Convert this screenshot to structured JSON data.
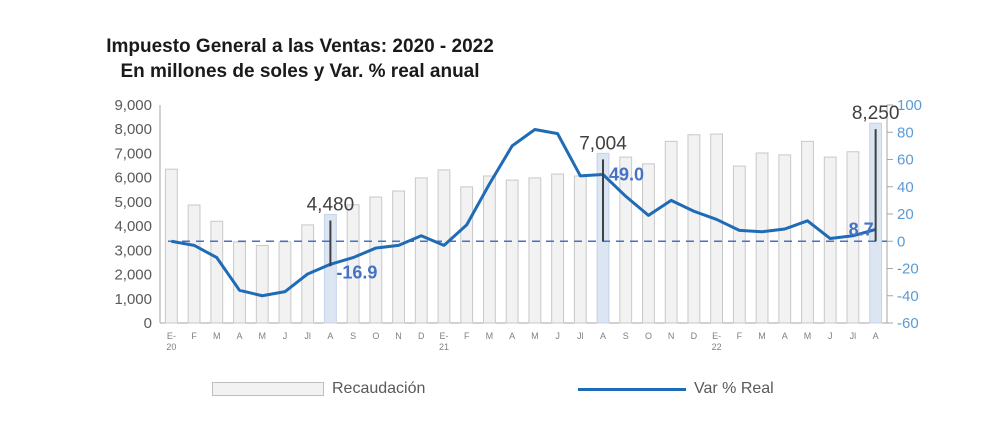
{
  "title": {
    "line1": "Impuesto General a las Ventas: 2020 - 2022",
    "line2": "En millones de soles y Var. % real anual"
  },
  "legend": {
    "bar_label": "Recaudación",
    "line_label": "Var % Real"
  },
  "colors": {
    "bar_fill": "#f2f2f2",
    "bar_stroke": "#c8c8c8",
    "bar_highlight": "#dce6f2",
    "line": "#1f6bb5",
    "zero_dash": "#4472c4",
    "left_axis_text": "#595959",
    "right_axis_text": "#5b9bd5",
    "annotation_value": "#404040",
    "annotation_pct": "#4472c4"
  },
  "chart_data": {
    "type": "bar",
    "title": "Impuesto General a las Ventas: 2020 - 2022 — En millones de soles y Var. % real anual",
    "categories": [
      "E-20",
      "F",
      "M",
      "A",
      "M",
      "J",
      "Jl",
      "A",
      "S",
      "O",
      "N",
      "D",
      "E-21",
      "F",
      "M",
      "A",
      "M",
      "J",
      "Jl",
      "A",
      "S",
      "O",
      "N",
      "D",
      "E-22",
      "F",
      "M",
      "A",
      "M",
      "J",
      "Jl",
      "A"
    ],
    "series": [
      {
        "name": "Recaudación",
        "type": "bar",
        "axis": "left",
        "values": [
          6350,
          4870,
          4200,
          3350,
          3200,
          3350,
          4050,
          4480,
          4880,
          5200,
          5450,
          5990,
          6320,
          5620,
          6070,
          5900,
          5990,
          6150,
          6070,
          7004,
          6850,
          6570,
          7500,
          7770,
          7800,
          6480,
          7020,
          6940,
          7500,
          6850,
          7070,
          8250
        ]
      },
      {
        "name": "Var % Real",
        "type": "line",
        "axis": "right",
        "values": [
          0,
          -3,
          -12,
          -36,
          -40,
          -37,
          -24,
          -16.9,
          -12,
          -5,
          -3,
          4,
          -3,
          12,
          42,
          70,
          82,
          79,
          48,
          49.0,
          33,
          19,
          30,
          22,
          16,
          8,
          7,
          9,
          15,
          2,
          4,
          8.7
        ]
      }
    ],
    "highlighted": [
      {
        "index": 7,
        "bar_label": "4,480",
        "line_label": "-16.9"
      },
      {
        "index": 19,
        "bar_label": "7,004",
        "line_label": "49.0"
      },
      {
        "index": 31,
        "bar_label": "8,250",
        "line_label": "8.7"
      }
    ],
    "left_axis": {
      "ylim": [
        0,
        9000
      ],
      "ticks": [
        "0",
        "1,000",
        "2,000",
        "3,000",
        "4,000",
        "5,000",
        "6,000",
        "7,000",
        "8,000",
        "9,000"
      ]
    },
    "right_axis": {
      "ylim": [
        -60,
        100
      ],
      "ticks": [
        "-60",
        "-40",
        "-20",
        "0",
        "20",
        "40",
        "60",
        "80",
        "100"
      ]
    },
    "xlabel": "",
    "ylabel": "",
    "grid": false,
    "legend_position": "bottom"
  }
}
